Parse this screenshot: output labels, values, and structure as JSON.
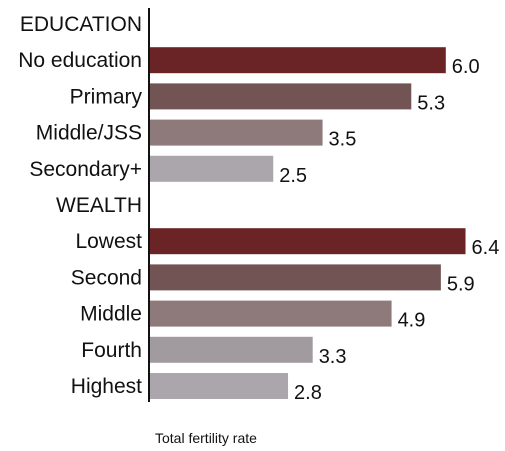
{
  "chart_data": {
    "type": "bar",
    "orientation": "horizontal",
    "xlabel": "Total fertility rate",
    "xlim": [
      0,
      6.4
    ],
    "grid": false,
    "groups": [
      {
        "name": "EDUCATION",
        "categories": [
          "No education",
          "Primary",
          "Middle/JSS",
          "Secondary+"
        ],
        "values": [
          6.0,
          5.3,
          3.5,
          2.5
        ],
        "value_labels": [
          "6.0",
          "5.3",
          "3.5",
          "2.5"
        ],
        "colors": [
          "#6b2426",
          "#725455",
          "#8e7a7b",
          "#aaa6ab"
        ]
      },
      {
        "name": "WEALTH",
        "categories": [
          "Lowest",
          "Second",
          "Middle",
          "Fourth",
          "Highest"
        ],
        "values": [
          6.4,
          5.9,
          4.9,
          3.3,
          2.8
        ],
        "value_labels": [
          "6.4",
          "5.9",
          "4.9",
          "3.3",
          "2.8"
        ],
        "colors": [
          "#6b2426",
          "#725455",
          "#8e7a7b",
          "#a19a9e",
          "#aaa6ab"
        ]
      }
    ]
  }
}
